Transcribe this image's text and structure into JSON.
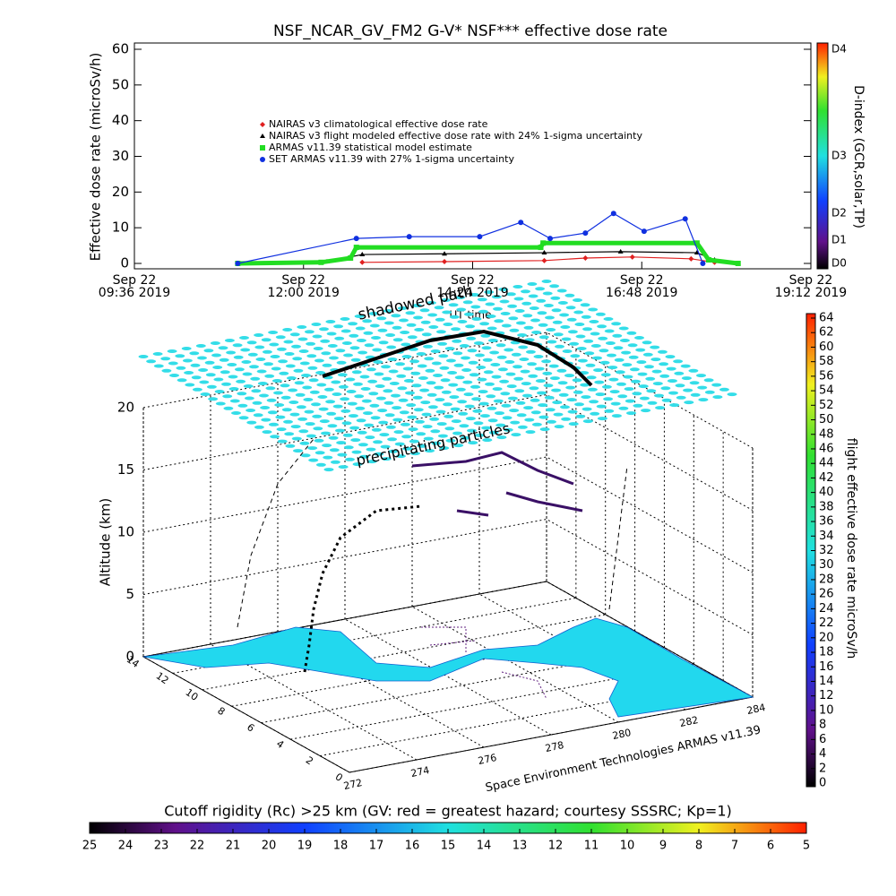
{
  "chart_data": [
    {
      "type": "line",
      "title": "NSF_NCAR_GV_FM2 G-V* NSF*** effective dose rate",
      "ylabel": "Effective dose rate (microSv/h)",
      "xlabel": "UT time",
      "xlim": [
        "2019-09-22T09:36",
        "2019-09-22T19:12"
      ],
      "xticks": [
        {
          "value": "2019-09-22T09:36",
          "label": "Sep 22\n09:36 2019"
        },
        {
          "value": "2019-09-22T12:00",
          "label": "Sep 22\n12:00 2019"
        },
        {
          "value": "2019-09-22T14:24",
          "label": "Sep 22\n14:24 2019"
        },
        {
          "value": "2019-09-22T16:48",
          "label": "Sep 22\n16:48 2019"
        },
        {
          "value": "2019-09-22T19:12",
          "label": "Sep 22\n19:12 2019"
        }
      ],
      "ylim": [
        0,
        60
      ],
      "yticks": [
        0,
        10,
        20,
        30,
        40,
        50,
        60
      ],
      "series": [
        {
          "name": "NAIRAS v3 climatological effective dose rate",
          "color": "#e02020",
          "marker": "diamond",
          "x": [
            "2019-09-22T12:50",
            "2019-09-22T14:00",
            "2019-09-22T15:25",
            "2019-09-22T16:00",
            "2019-09-22T16:40",
            "2019-09-22T17:30",
            "2019-09-22T17:50"
          ],
          "values": [
            0.3,
            0.5,
            0.8,
            1.5,
            1.8,
            1.3,
            0.3
          ]
        },
        {
          "name": "NAIRAS v3 flight modeled effective dose rate with 24% 1-sigma uncertainty",
          "color": "#000000",
          "marker": "triangle",
          "x": [
            "2019-09-22T11:04",
            "2019-09-22T12:20",
            "2019-09-22T12:50",
            "2019-09-22T14:00",
            "2019-09-22T15:25",
            "2019-09-22T16:30",
            "2019-09-22T17:35",
            "2019-09-22T17:50",
            "2019-09-22T18:10"
          ],
          "values": [
            0,
            0.5,
            2.5,
            2.7,
            3,
            3.3,
            3,
            1,
            0
          ]
        },
        {
          "name": "ARMAS v11.39 statistical model estimate",
          "color": "#22dd22",
          "marker": "square",
          "x": [
            "2019-09-22T11:04",
            "2019-09-22T12:15",
            "2019-09-22T12:40",
            "2019-09-22T12:45",
            "2019-09-22T15:22",
            "2019-09-22T15:24",
            "2019-09-22T17:35",
            "2019-09-22T17:45",
            "2019-09-22T18:10"
          ],
          "values": [
            0,
            0.3,
            1.5,
            4.5,
            4.5,
            5.7,
            5.7,
            1,
            0
          ]
        },
        {
          "name": "SET ARMAS v11.39 with 27% 1-sigma uncertainty",
          "color": "#1030e0",
          "marker": "circle",
          "x": [
            "2019-09-22T11:04",
            "2019-09-22T12:45",
            "2019-09-22T13:30",
            "2019-09-22T14:30",
            "2019-09-22T15:05",
            "2019-09-22T15:30",
            "2019-09-22T16:00",
            "2019-09-22T16:24",
            "2019-09-22T16:50",
            "2019-09-22T17:25",
            "2019-09-22T17:40"
          ],
          "values": [
            0,
            7,
            7.5,
            7.5,
            11.5,
            7,
            8.5,
            14,
            9,
            12.5,
            0
          ]
        }
      ],
      "colorbar": {
        "label": "D-index (GCR,solar,TP)",
        "ticks": [
          "D0",
          "D1",
          "D2",
          "D3",
          "D4"
        ]
      }
    },
    {
      "type": "surface3d",
      "annotations": [
        "shadowed path",
        "precipitating particles"
      ],
      "zlabel": "Altitude (km)",
      "zlim": [
        0,
        20
      ],
      "zticks": [
        0,
        5,
        10,
        15,
        20
      ],
      "xlim": [
        272,
        284
      ],
      "xticks": [
        272,
        274,
        276,
        278,
        280,
        282,
        284
      ],
      "ylim": [
        0,
        14
      ],
      "yticks": [
        0,
        2,
        4,
        6,
        8,
        10,
        12,
        14
      ],
      "credit": "Space Environment Technologies ARMAS v11.39",
      "colorbar": {
        "label": "flight effective dose rate microSv/h",
        "lim": [
          0,
          64
        ],
        "ticks": [
          0,
          2,
          4,
          6,
          8,
          10,
          12,
          14,
          16,
          18,
          20,
          22,
          24,
          26,
          28,
          30,
          32,
          34,
          36,
          38,
          40,
          42,
          44,
          46,
          48,
          50,
          52,
          54,
          56,
          58,
          60,
          62,
          64
        ]
      },
      "colorbar2": {
        "label": "Cutoff rigidity (Rc) >25 km (GV: red = greatest hazard; courtesy SSSRC; Kp=1)",
        "lim": [
          25,
          5
        ],
        "ticks": [
          25,
          24,
          23,
          22,
          21,
          20,
          19,
          18,
          17,
          16,
          15,
          14,
          13,
          12,
          11,
          10,
          9,
          8,
          7,
          6,
          5
        ]
      }
    }
  ]
}
